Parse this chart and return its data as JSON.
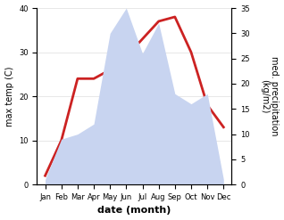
{
  "months": [
    "Jan",
    "Feb",
    "Mar",
    "Apr",
    "May",
    "Jun",
    "Jul",
    "Aug",
    "Sep",
    "Oct",
    "Nov",
    "Dec"
  ],
  "temp": [
    2,
    10,
    24,
    24,
    26,
    29,
    33,
    37,
    38,
    30,
    18,
    13
  ],
  "precip": [
    1,
    9,
    10,
    12,
    30,
    35,
    26,
    32,
    18,
    16,
    18,
    1
  ],
  "temp_color": "#cc2222",
  "precip_fill_color": "#c8d4f0",
  "left_label": "max temp (C)",
  "right_label": "med. precipitation\n(kg/m2)",
  "xlabel": "date (month)",
  "ylim_left": [
    0,
    40
  ],
  "ylim_right": [
    0,
    35
  ],
  "yticks_left": [
    0,
    10,
    20,
    30,
    40
  ],
  "yticks_right": [
    0,
    5,
    10,
    15,
    20,
    25,
    30,
    35
  ],
  "bg_color": "#ffffff",
  "line_width": 2.0,
  "label_fontsize": 7,
  "tick_fontsize": 6,
  "xlabel_fontsize": 8
}
